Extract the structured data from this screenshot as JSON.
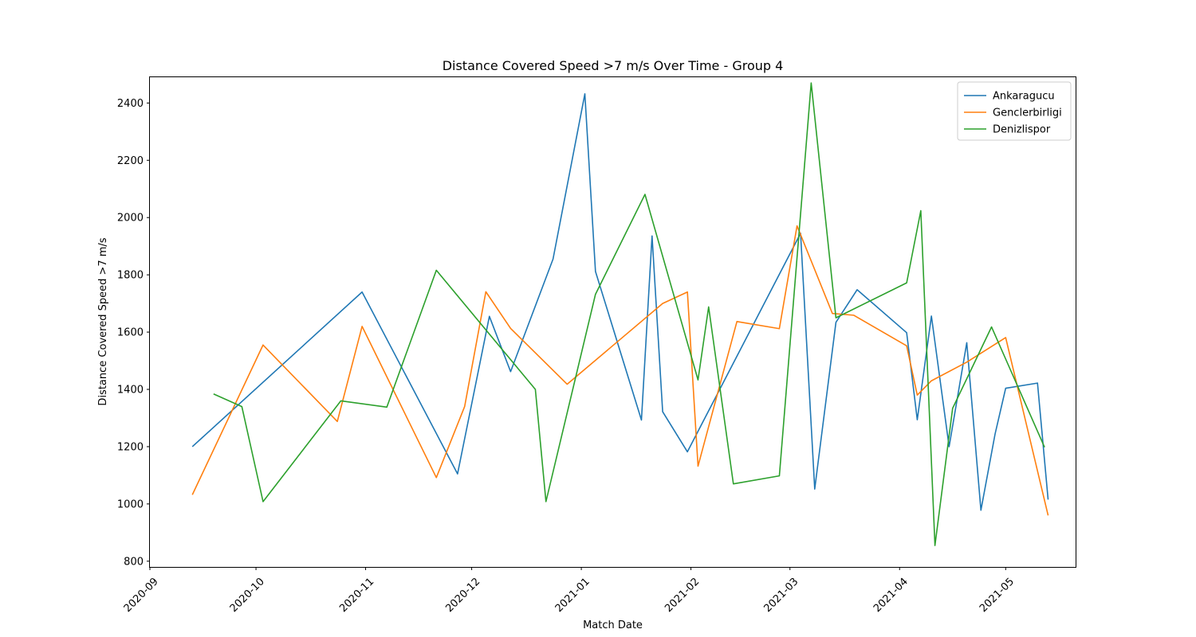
{
  "chart_data": {
    "type": "line",
    "title": "Distance Covered Speed >7 m/s Over Time - Group 4",
    "xlabel": "Match Date",
    "ylabel": "Distance Covered Speed >7 m/s",
    "xlim": [
      "2020-09-01",
      "2021-05-21"
    ],
    "ylim": [
      780,
      2490
    ],
    "grid": false,
    "legend_position": "top-right",
    "x_ticks": [
      "2020-09",
      "2020-10",
      "2020-11",
      "2020-12",
      "2021-01",
      "2021-02",
      "2021-03",
      "2021-04",
      "2021-05"
    ],
    "y_ticks": [
      800,
      1000,
      1200,
      1400,
      1600,
      1800,
      2000,
      2200,
      2400
    ],
    "series": [
      {
        "name": "Ankaragucu",
        "color": "#1f77b4",
        "points": [
          [
            "2020-09-13",
            1200
          ],
          [
            "2020-10-31",
            1740
          ],
          [
            "2020-11-27",
            1105
          ],
          [
            "2020-12-06",
            1655
          ],
          [
            "2020-12-12",
            1462
          ],
          [
            "2020-12-24",
            1855
          ],
          [
            "2021-01-02",
            2432
          ],
          [
            "2021-01-05",
            1812
          ],
          [
            "2021-01-18",
            1293
          ],
          [
            "2021-01-21",
            1936
          ],
          [
            "2021-01-24",
            1322
          ],
          [
            "2021-01-31",
            1182
          ],
          [
            "2021-03-04",
            1945
          ],
          [
            "2021-03-08",
            1052
          ],
          [
            "2021-03-14",
            1634
          ],
          [
            "2021-03-20",
            1748
          ],
          [
            "2021-04-03",
            1598
          ],
          [
            "2021-04-06",
            1294
          ],
          [
            "2021-04-10",
            1656
          ],
          [
            "2021-04-15",
            1200
          ],
          [
            "2021-04-20",
            1563
          ],
          [
            "2021-04-24",
            978
          ],
          [
            "2021-04-28",
            1244
          ],
          [
            "2021-05-01",
            1404
          ],
          [
            "2021-05-10",
            1422
          ],
          [
            "2021-05-13",
            1015
          ]
        ]
      },
      {
        "name": "Genclerbirligi",
        "color": "#ff7f0e",
        "points": [
          [
            "2020-09-13",
            1032
          ],
          [
            "2020-10-03",
            1555
          ],
          [
            "2020-10-24",
            1288
          ],
          [
            "2020-10-31",
            1620
          ],
          [
            "2020-11-21",
            1092
          ],
          [
            "2020-11-29",
            1340
          ],
          [
            "2020-12-05",
            1741
          ],
          [
            "2020-12-12",
            1613
          ],
          [
            "2020-12-28",
            1418
          ],
          [
            "2021-01-24",
            1700
          ],
          [
            "2021-01-31",
            1740
          ],
          [
            "2021-02-03",
            1132
          ],
          [
            "2021-02-14",
            1637
          ],
          [
            "2021-02-26",
            1612
          ],
          [
            "2021-03-03",
            1971
          ],
          [
            "2021-03-13",
            1665
          ],
          [
            "2021-03-19",
            1659
          ],
          [
            "2021-04-03",
            1552
          ],
          [
            "2021-04-06",
            1380
          ],
          [
            "2021-04-10",
            1430
          ],
          [
            "2021-04-20",
            1495
          ],
          [
            "2021-05-01",
            1581
          ],
          [
            "2021-05-13",
            960
          ]
        ]
      },
      {
        "name": "Denizlispor",
        "color": "#2ca02c",
        "points": [
          [
            "2020-09-19",
            1384
          ],
          [
            "2020-09-27",
            1340
          ],
          [
            "2020-10-03",
            1008
          ],
          [
            "2020-10-25",
            1360
          ],
          [
            "2020-11-07",
            1338
          ],
          [
            "2020-11-21",
            1816
          ],
          [
            "2020-12-19",
            1400
          ],
          [
            "2020-12-22",
            1008
          ],
          [
            "2021-01-05",
            1732
          ],
          [
            "2021-01-19",
            2081
          ],
          [
            "2021-02-03",
            1433
          ],
          [
            "2021-02-06",
            1688
          ],
          [
            "2021-02-13",
            1070
          ],
          [
            "2021-02-26",
            1098
          ],
          [
            "2021-03-07",
            2470
          ],
          [
            "2021-03-14",
            1650
          ],
          [
            "2021-04-03",
            1772
          ],
          [
            "2021-04-07",
            2024
          ],
          [
            "2021-04-11",
            855
          ],
          [
            "2021-04-16",
            1334
          ],
          [
            "2021-04-27",
            1618
          ],
          [
            "2021-05-12",
            1198
          ]
        ]
      }
    ]
  }
}
